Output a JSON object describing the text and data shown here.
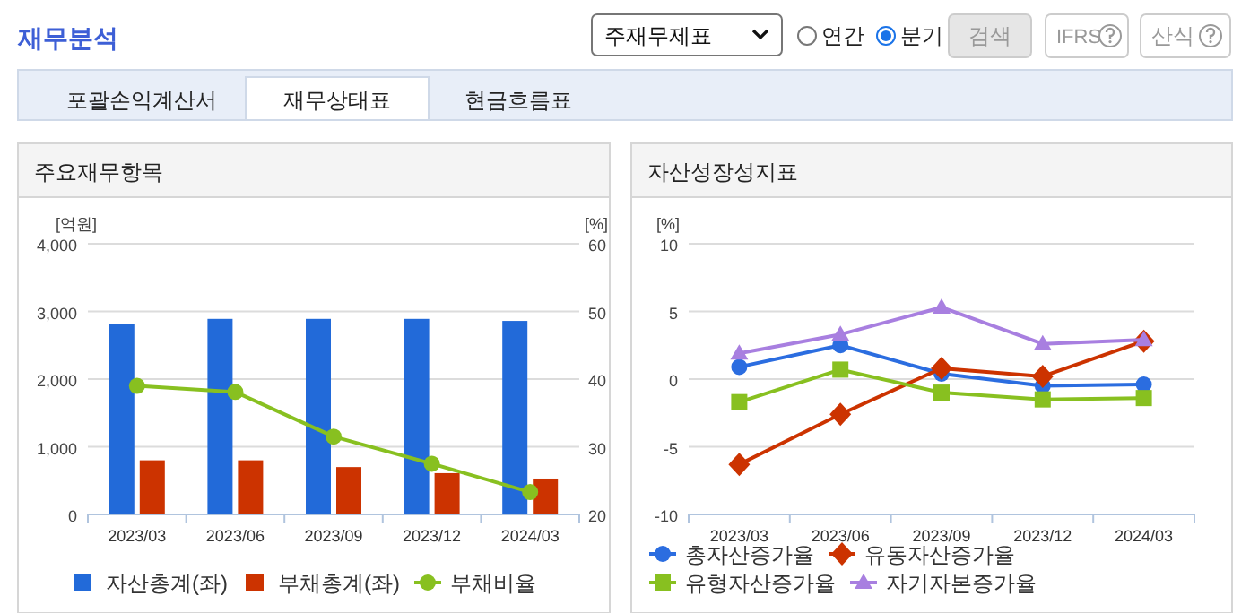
{
  "chart_data": [
    {
      "type": "other",
      "title": "재무분석",
      "annotations": [
        "주재무제표",
        "연간",
        "분기",
        "검색",
        "IFRS",
        "산식",
        "포괄손익계산서",
        "재무상태표",
        "현금흐름표"
      ]
    },
    {
      "type": "bar",
      "title": "주요재무항목",
      "ylabel": "[억원]",
      "y2label": "[%]",
      "categories": [
        "2023/03",
        "2023/06",
        "2023/09",
        "2023/12",
        "2024/03"
      ],
      "series": [
        {
          "name": "자산총계(좌)",
          "color": "#226ad9",
          "values": [
            2810,
            2890,
            2890,
            2890,
            2860
          ]
        },
        {
          "name": "부채총계(좌)",
          "color": "#cc3300",
          "values": [
            800,
            800,
            700,
            610,
            530
          ]
        },
        {
          "name": "부채비율",
          "type": "line",
          "axis": "y2",
          "marker": "circle",
          "color": "#88c020",
          "values": [
            39.0,
            38.1,
            31.5,
            27.5,
            23.3
          ]
        }
      ],
      "ylim": [
        0,
        4000
      ],
      "yticks": [
        0,
        {
          "value": 1000,
          "label": "1,000"
        },
        {
          "value": 2000,
          "label": "2,000"
        },
        {
          "value": 3000,
          "label": "3,000"
        },
        {
          "value": 4000,
          "label": "4,000"
        }
      ],
      "y2lim": [
        20,
        60
      ],
      "y2ticks": [
        20,
        30,
        40,
        50,
        60
      ],
      "grid": "y",
      "legend": "bottom"
    },
    {
      "type": "line",
      "title": "자산성장성지표",
      "ylabel": "[%]",
      "categories": [
        "2023/03",
        "2023/06",
        "2023/09",
        "2023/12",
        "2024/03"
      ],
      "series": [
        {
          "name": "총자산증가율",
          "marker": "circle",
          "color": "#2b6de0",
          "values": [
            0.9,
            2.5,
            0.4,
            -0.5,
            -0.4
          ]
        },
        {
          "name": "유동자산증가율",
          "marker": "diamond",
          "color": "#cc3300",
          "values": [
            -6.3,
            -2.6,
            0.8,
            0.2,
            2.8
          ]
        },
        {
          "name": "유형자산증가율",
          "marker": "square",
          "color": "#88c020",
          "values": [
            -1.7,
            0.7,
            -1.0,
            -1.5,
            -1.4
          ]
        },
        {
          "name": "자기자본증가율",
          "marker": "triangle",
          "color": "#a87fe0",
          "values": [
            1.9,
            3.3,
            5.3,
            2.6,
            2.9
          ]
        }
      ],
      "ylim": [
        -10,
        10
      ],
      "yticks": [
        -10,
        -5,
        0,
        5,
        10
      ],
      "grid": "y",
      "legend": "bottom"
    }
  ]
}
